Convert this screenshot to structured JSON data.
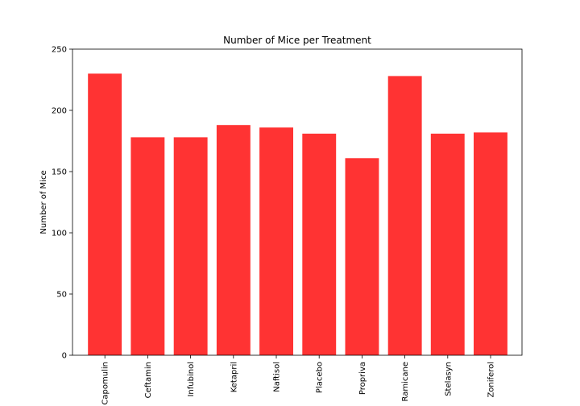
{
  "chart_data": {
    "type": "bar",
    "title": "Number of Mice per Treatment",
    "xlabel": "",
    "ylabel": "Number of Mice",
    "categories": [
      "Capomulin",
      "Ceftamin",
      "Infubinol",
      "Ketapril",
      "Naftisol",
      "Placebo",
      "Propriva",
      "Ramicane",
      "Stelasyn",
      "Zoniferol"
    ],
    "values": [
      230,
      178,
      178,
      188,
      186,
      181,
      161,
      228,
      181,
      182
    ],
    "ylim": [
      0,
      250
    ],
    "yticks": [
      0,
      50,
      100,
      150,
      200,
      250
    ],
    "grid": false,
    "legend": "none",
    "bar_color": "#ff3333"
  }
}
